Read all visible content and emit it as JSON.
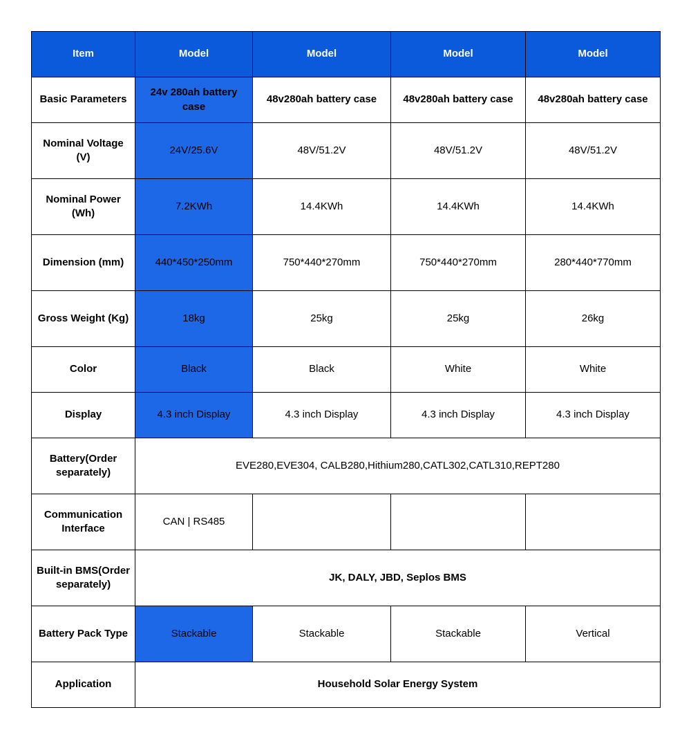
{
  "table": {
    "header_bg": "#0a5adb",
    "header_fg": "#ffffff",
    "highlight_bg": "#1d68e6",
    "border_color": "#000000",
    "columns": [
      "Item",
      "Model",
      "Model",
      "Model",
      "Model"
    ],
    "rows": {
      "basic_parameters": {
        "label": "Basic Parameters",
        "v1": "24v 280ah battery case",
        "v2": "48v280ah battery case",
        "v3": "48v280ah battery case",
        "v4": "48v280ah battery case"
      },
      "nominal_voltage": {
        "label": "Nominal Voltage (V)",
        "v1": "24V/25.6V",
        "v2": "48V/51.2V",
        "v3": "48V/51.2V",
        "v4": "48V/51.2V"
      },
      "nominal_power": {
        "label": "Nominal Power (Wh)",
        "v1": "7.2KWh",
        "v2": "14.4KWh",
        "v3": "14.4KWh",
        "v4": "14.4KWh"
      },
      "dimension": {
        "label": "Dimension (mm)",
        "v1": "440*450*250mm",
        "v2": "750*440*270mm",
        "v3": "750*440*270mm",
        "v4": "280*440*770mm"
      },
      "gross_weight": {
        "label": "Gross Weight (Kg)",
        "v1": "18kg",
        "v2": "25kg",
        "v3": "25kg",
        "v4": "26kg"
      },
      "color": {
        "label": "Color",
        "v1": "Black",
        "v2": "Black",
        "v3": "White",
        "v4": "White"
      },
      "display": {
        "label": "Display",
        "v1": "4.3 inch Display",
        "v2": "4.3 inch Display",
        "v3": "4.3 inch Display",
        "v4": "4.3 inch Display"
      },
      "battery_order": {
        "label": "Battery(Order separately)",
        "span": "EVE280,EVE304, CALB280,Hithium280,CATL302,CATL310,REPT280"
      },
      "comm_interface": {
        "label": "Communication Interface",
        "v1": "CAN | RS485",
        "v2": "",
        "v3": "",
        "v4": ""
      },
      "bms": {
        "label": "Built-in BMS(Order separately)",
        "span": "JK, DALY, JBD, Seplos BMS"
      },
      "pack_type": {
        "label": "Battery Pack Type",
        "v1": "Stackable",
        "v2": "Stackable",
        "v3": "Stackable",
        "v4": "Vertical"
      },
      "application": {
        "label": "Application",
        "span": "Household Solar Energy System"
      }
    }
  }
}
